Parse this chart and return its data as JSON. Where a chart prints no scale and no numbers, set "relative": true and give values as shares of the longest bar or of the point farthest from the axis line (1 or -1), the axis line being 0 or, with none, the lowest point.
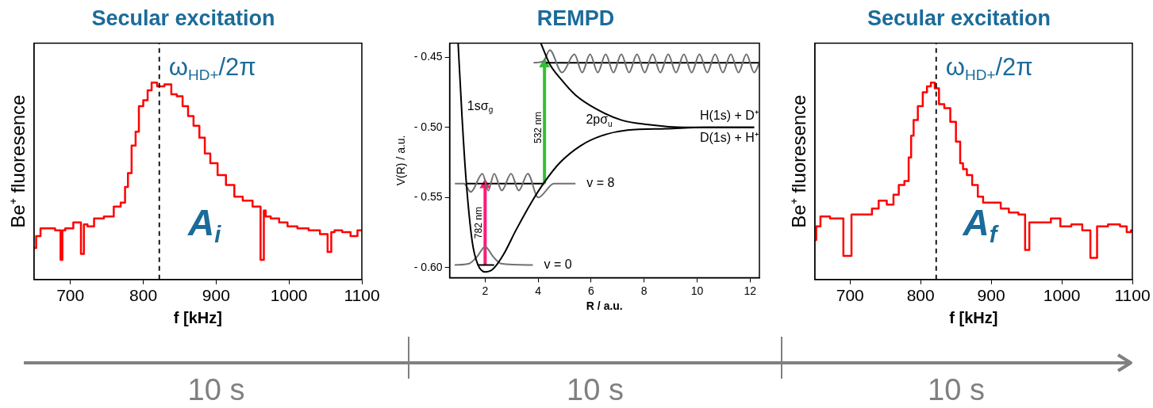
{
  "chart_data": [
    {
      "type": "step",
      "title": "Secular excitation",
      "xlabel": "f [kHz]",
      "ylabel": "Be⁺ fluoresence",
      "relative": true,
      "xlim": [
        650,
        1100
      ],
      "xticks": [
        700,
        800,
        900,
        1000,
        1100
      ],
      "color": "#ff0000",
      "x": [
        650,
        656,
        662,
        673,
        685,
        688,
        690,
        696,
        712,
        717,
        720,
        727,
        738,
        754,
        765,
        773,
        777,
        781,
        787,
        792,
        796,
        804,
        808,
        815,
        823,
        835,
        842,
        850,
        858,
        865,
        873,
        881,
        888,
        896,
        908,
        919,
        931,
        942,
        958,
        964,
        967,
        969,
        981,
        992,
        1004,
        1019,
        1035,
        1050,
        1056,
        1060,
        1065,
        1081,
        1088,
        1100
      ],
      "values": [
        0.16,
        0.22,
        0.26,
        0.26,
        0.25,
        0.1,
        0.25,
        0.26,
        0.29,
        0.13,
        0.28,
        0.27,
        0.31,
        0.32,
        0.37,
        0.39,
        0.47,
        0.54,
        0.68,
        0.75,
        0.88,
        0.91,
        0.96,
        1,
        0.98,
        0.99,
        0.94,
        0.93,
        0.88,
        0.83,
        0.78,
        0.72,
        0.64,
        0.59,
        0.53,
        0.48,
        0.42,
        0.4,
        0.37,
        0.1,
        0.35,
        0.32,
        0.31,
        0.29,
        0.27,
        0.26,
        0.25,
        0.23,
        0.14,
        0.24,
        0.25,
        0.24,
        0.22,
        0.25
      ],
      "ref_lines": [
        {
          "axis": "x",
          "value": 822,
          "label": "ω$_{HD+}$/2π",
          "color": "#000000",
          "line_style": "dashed"
        }
      ],
      "annotations": [
        "A$_{i}$"
      ]
    },
    {
      "type": "line",
      "title": "REMPD",
      "xlabel": "R / a.u.",
      "ylabel": "V(R) / a.u.",
      "xlim": [
        0.66,
        12.35
      ],
      "xticks": [
        2,
        4,
        6,
        8,
        10,
        12
      ],
      "ylim": [
        -0.607,
        -0.44
      ],
      "yticks": [
        {
          "value": -0.6,
          "label": "- 0.60"
        },
        {
          "value": -0.55,
          "label": "- 0.55"
        },
        {
          "value": -0.5,
          "label": "- 0.50"
        },
        {
          "value": -0.45,
          "label": "- 0.45"
        }
      ],
      "series": [
        {
          "name": "1sσ$_{g}$",
          "color": "#000000",
          "x": [
            0.98,
            1.13,
            1.28,
            1.51,
            1.71,
            2.0,
            2.29,
            2.68,
            3.17,
            3.76,
            4.24,
            4.83,
            5.61,
            6.39,
            7.37,
            8.83,
            10.29,
            12.15
          ],
          "values": [
            -0.44,
            -0.493,
            -0.537,
            -0.581,
            -0.597,
            -0.603,
            -0.601,
            -0.591,
            -0.573,
            -0.553,
            -0.539,
            -0.525,
            -0.513,
            -0.506,
            -0.502,
            -0.501,
            -0.5,
            -0.5
          ]
        },
        {
          "name": "2pσ$_{u}$",
          "color": "#000000",
          "x": [
            4.1,
            4.44,
            4.83,
            5.41,
            6.2,
            7.17,
            8.15,
            9.51,
            12.15
          ],
          "values": [
            -0.44,
            -0.455,
            -0.465,
            -0.477,
            -0.487,
            -0.495,
            -0.498,
            -0.5,
            -0.5
          ]
        },
        {
          "color": "#707070",
          "x": [
            0.85,
            1.4,
            1.7,
            2.0,
            2.3,
            2.6,
            3.8
          ],
          "values": [
            -0.598,
            -0.597,
            -0.592,
            -0.585,
            -0.592,
            -0.597,
            -0.598
          ]
        },
        {
          "color": "#707070",
          "x": [
            0.86,
            1.2,
            1.46,
            1.9,
            2.12,
            2.34,
            2.63,
            2.98,
            3.27,
            3.61,
            4.0,
            4.6,
            5.41
          ],
          "values": [
            -0.54,
            -0.54,
            -0.546,
            -0.533,
            -0.545,
            -0.533,
            -0.545,
            -0.533,
            -0.545,
            -0.533,
            -0.55,
            -0.54,
            -0.54
          ]
        },
        {
          "color": "#707070",
          "x": [
            3.83,
            4.2,
            4.44,
            4.9,
            5.37,
            5.66,
            5.96,
            6.25,
            6.55,
            6.84,
            7.14,
            7.43,
            7.73,
            8.02,
            8.32,
            8.61,
            8.91,
            9.2,
            9.5,
            9.79,
            10.09,
            10.38,
            10.68,
            10.97,
            11.27,
            11.56,
            11.86,
            12.15,
            12.35
          ],
          "values": [
            -0.454,
            -0.453,
            -0.445,
            -0.461,
            -0.448,
            -0.461,
            -0.448,
            -0.461,
            -0.448,
            -0.461,
            -0.448,
            -0.461,
            -0.448,
            -0.461,
            -0.448,
            -0.461,
            -0.448,
            -0.461,
            -0.448,
            -0.461,
            -0.448,
            -0.461,
            -0.448,
            -0.461,
            -0.448,
            -0.461,
            -0.448,
            -0.461,
            -0.454
          ]
        },
        {
          "color": "#000000",
          "x": [
            1.71,
            2.34
          ],
          "values": [
            -0.598,
            -0.598
          ]
        },
        {
          "color": "#000000",
          "x": [
            1.27,
            4.24
          ],
          "values": [
            -0.54,
            -0.54
          ]
        },
        {
          "color": "#000000",
          "x": [
            4.29,
            12.35
          ],
          "values": [
            -0.454,
            -0.454
          ]
        },
        {
          "name": "782 nm",
          "color": "#ff1a75",
          "marker": "triangle",
          "x": [
            2.0,
            2.0
          ],
          "values": [
            -0.598,
            -0.541
          ]
        },
        {
          "name": "532 nm",
          "color": "#33c033",
          "marker": "triangle",
          "x": [
            4.24,
            4.24
          ],
          "values": [
            -0.54,
            -0.455
          ]
        }
      ],
      "annotations": [
        "H(1s) + D⁺",
        "D(1s) + H⁺",
        {
          "text": "v = 8",
          "x": 5.41,
          "y": -0.54
        },
        {
          "text": "v = 0",
          "x": 3.8,
          "y": -0.598
        }
      ]
    },
    {
      "type": "step",
      "title": "Secular excitation",
      "xlabel": "f [kHz]",
      "ylabel": "Be⁺ fluoresence",
      "relative": true,
      "xlim": [
        650,
        1100
      ],
      "xticks": [
        700,
        800,
        900,
        1000,
        1100
      ],
      "color": "#ff0000",
      "x": [
        650,
        654,
        662,
        681,
        700,
        704,
        727,
        735,
        746,
        758,
        765,
        773,
        781,
        785,
        788,
        792,
        800,
        806,
        812,
        817,
        823,
        829,
        838,
        846,
        854,
        858,
        862,
        869,
        877,
        885,
        892,
        908,
        919,
        931,
        946,
        950,
        958,
        977,
        992,
        1004,
        1023,
        1035,
        1046,
        1054,
        1077,
        1088,
        1096,
        1100
      ],
      "values": [
        0.2,
        0.27,
        0.32,
        0.31,
        0.12,
        0.33,
        0.33,
        0.36,
        0.4,
        0.38,
        0.43,
        0.48,
        0.5,
        0.62,
        0.73,
        0.81,
        0.88,
        0.95,
        0.98,
        1,
        0.97,
        0.89,
        0.87,
        0.8,
        0.7,
        0.59,
        0.56,
        0.53,
        0.48,
        0.42,
        0.39,
        0.39,
        0.36,
        0.34,
        0.33,
        0.15,
        0.29,
        0.29,
        0.31,
        0.27,
        0.28,
        0.25,
        0.11,
        0.27,
        0.28,
        0.27,
        0.24,
        0.25
      ],
      "ref_lines": [
        {
          "axis": "x",
          "value": 822,
          "label": "ω$_{HD+}$/2π",
          "color": "#000000",
          "line_style": "dashed"
        }
      ],
      "annotations": [
        "A$_{f}$"
      ]
    },
    {
      "type": "other",
      "annotations": [
        "10 s",
        "10 s",
        "10 s"
      ]
    }
  ]
}
